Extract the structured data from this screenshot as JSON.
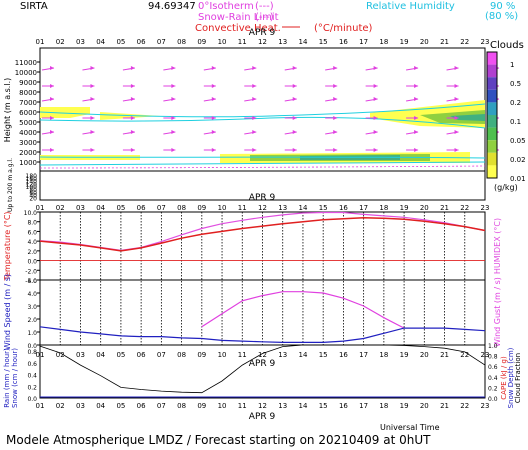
{
  "header": {
    "station": "SIRTA",
    "coords": "94.69347",
    "zero_isotherm": "0°Isotherm",
    "snow_rain_limit": "Snow-Rain Limit",
    "convective_heat": "Convective Heat.",
    "heat_unit": "(°C/minute)",
    "relative_humidity": "Relative Humidity",
    "rh_90": "90 %",
    "rh_80": "(80 %)",
    "line_sample": "(---)"
  },
  "hours": [
    "01",
    "02",
    "03",
    "04",
    "05",
    "06",
    "07",
    "08",
    "09",
    "10",
    "11",
    "12",
    "13",
    "14",
    "15",
    "16",
    "17",
    "18",
    "19",
    "20",
    "21",
    "22",
    "23"
  ],
  "date_label": "APR  9",
  "upper": {
    "ylabel": "Height  (m a.s.l.)",
    "ylabel_low": "Up to 200 m a.g.l.",
    "yticks_main": [
      "11000",
      "10000",
      "9000",
      "8000",
      "7000",
      "6000",
      "5000",
      "4000",
      "3000",
      "2000",
      "1000"
    ],
    "yticks_low": [
      "180",
      "160",
      "140",
      "120",
      "100",
      "80",
      "60",
      "40",
      "20"
    ],
    "colorbar_title": "Clouds",
    "colorbar_labels": [
      "1",
      "0.5",
      "0.2",
      "0.1",
      "0.05",
      "0.02",
      "0.01"
    ],
    "colorbar_unit": "(g/kg)",
    "colorbar_colors": [
      "#f050f0",
      "#b040d0",
      "#6040c0",
      "#3050c0",
      "#30a0c0",
      "#40b080",
      "#50c050",
      "#90d040",
      "#e0e030",
      "#ffff50"
    ]
  },
  "temperature": {
    "ylabel": "Temperature (°C)",
    "ylabel_right": "HUMIDEX (°C)",
    "yticks": [
      "10.0",
      "8.0",
      "6.0",
      "4.0",
      "2.0",
      "0.0",
      "-2.0",
      "-4.0"
    ],
    "ylim": [
      -4,
      10
    ],
    "temp": [
      4.0,
      3.6,
      3.2,
      2.6,
      2.0,
      2.6,
      3.6,
      4.6,
      5.4,
      6.0,
      6.6,
      7.1,
      7.6,
      8.0,
      8.4,
      8.6,
      8.8,
      8.7,
      8.5,
      8.1,
      7.6,
      7.0,
      6.2
    ],
    "humidex": [
      4.1,
      3.8,
      3.3,
      2.7,
      2.1,
      2.7,
      3.9,
      5.3,
      6.6,
      7.6,
      8.3,
      8.9,
      9.4,
      9.8,
      9.9,
      9.9,
      9.5,
      9.2,
      8.9,
      8.4,
      7.8,
      7.0,
      6.2
    ],
    "temp_color": "#e02020",
    "humidex_color": "#e050e0"
  },
  "wind": {
    "ylabel": "Wind Speed (m / s)",
    "ylabel_right": "Wind Gust (m / s)",
    "yticks": [
      "5.0",
      "4.0",
      "3.0",
      "2.0",
      "1.0",
      "0.0"
    ],
    "ylim": [
      0,
      5
    ],
    "speed": [
      1.4,
      1.2,
      1.0,
      0.85,
      0.7,
      0.65,
      0.65,
      0.55,
      0.5,
      0.35,
      0.3,
      0.25,
      0.2,
      0.2,
      0.2,
      0.3,
      0.5,
      0.9,
      1.3,
      1.3,
      1.3,
      1.2,
      1.1
    ],
    "gust": [
      null,
      null,
      null,
      null,
      null,
      null,
      null,
      null,
      1.4,
      2.4,
      3.4,
      3.8,
      4.1,
      4.1,
      4.0,
      3.6,
      3.0,
      2.1,
      1.3,
      null,
      null,
      null,
      null
    ],
    "speed_color": "#2020c0",
    "gust_color": "#e040e0"
  },
  "rain": {
    "ylabel_left1": "Rain (mm / hour)",
    "ylabel_left2": "Snow (cm / hour)",
    "ylabel_right1": "CAPE (kJ / g)",
    "ylabel_right2": "Snow Depth (cm)",
    "ylabel_right3": "Cloud Fraction",
    "yticks_left": [
      "0.8",
      "0.6",
      "0.4",
      "0.2",
      "0.0"
    ],
    "yticks_right": [
      "1.0",
      "0.8",
      "0.6",
      "0.4",
      "0.2",
      "0.0"
    ],
    "cloud_fraction": [
      0.98,
      0.85,
      0.62,
      0.42,
      0.2,
      0.16,
      0.13,
      0.11,
      0.1,
      0.32,
      0.62,
      0.84,
      0.97,
      1.0,
      1.0,
      1.0,
      1.0,
      1.0,
      0.99,
      0.97,
      0.94,
      0.87,
      0.62
    ]
  },
  "xlabel": "Universal Time",
  "footer": "Modele Atmospherique LMDZ / Forecast starting on 20210409 at 0hUT"
}
